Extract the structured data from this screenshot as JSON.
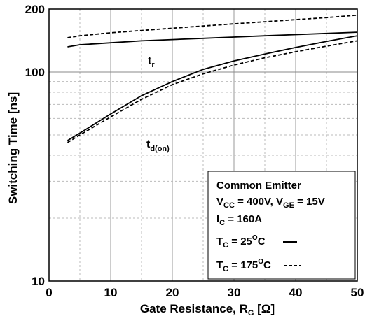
{
  "chart_data": {
    "type": "line",
    "xlabel": "Gate Resistance, RG [Ω]",
    "ylabel": "Switching Time [ns]",
    "xlim": [
      0,
      50
    ],
    "ylim": [
      10,
      200
    ],
    "yscale": "log",
    "grid": true,
    "x_ticks": [
      "0",
      "10",
      "20",
      "30",
      "40",
      "50"
    ],
    "y_ticks": [
      "10",
      "100",
      "200"
    ],
    "series": [
      {
        "name": "tr",
        "condition": "TC = 25°C",
        "style": "solid",
        "x": [
          3,
          5,
          10,
          15,
          20,
          25,
          30,
          35,
          40,
          45,
          50
        ],
        "y": [
          132,
          135,
          138,
          141,
          143,
          145,
          147,
          149,
          151,
          153,
          155
        ]
      },
      {
        "name": "tr",
        "condition": "TC = 175°C",
        "style": "dashed",
        "x": [
          3,
          5,
          10,
          15,
          20,
          25,
          30,
          35,
          40,
          45,
          50
        ],
        "y": [
          146,
          149,
          154,
          158,
          162,
          166,
          170,
          174,
          178,
          182,
          187
        ]
      },
      {
        "name": "td(on)",
        "condition": "TC = 25°C",
        "style": "solid",
        "x": [
          3,
          5,
          10,
          15,
          20,
          25,
          30,
          35,
          40,
          45,
          50
        ],
        "y": [
          47,
          51,
          63,
          77,
          90,
          103,
          113,
          122,
          131,
          140,
          149
        ]
      },
      {
        "name": "td(on)",
        "condition": "TC = 175°C",
        "style": "dashed",
        "x": [
          3,
          5,
          10,
          15,
          20,
          25,
          30,
          35,
          40,
          45,
          50
        ],
        "y": [
          46,
          50,
          61,
          74,
          87,
          98,
          108,
          117,
          125,
          133,
          141
        ]
      }
    ],
    "annotations": {
      "tr": {
        "main": "t",
        "sub": "r"
      },
      "td_on": {
        "main": "t",
        "sub": "d(on)"
      }
    },
    "legend": {
      "placement": "bottom-right",
      "title": "Common Emitter",
      "vcc_label": "V",
      "vcc_sub": "CC",
      "vcc_value": " = 400V, ",
      "vge_label": "V",
      "vge_sub": "GE",
      "vge_value": " = 15V",
      "ic_label": "I",
      "ic_sub": "C",
      "ic_value": " = 160A",
      "t1_label": "T",
      "t1_sub": "C",
      "t1_value": " = 25",
      "t1_sup": "O",
      "t1_unit": "C",
      "t2_label": "T",
      "t2_sub": "C",
      "t2_value": " = 175",
      "t2_sup": "O",
      "t2_unit": "C"
    }
  }
}
